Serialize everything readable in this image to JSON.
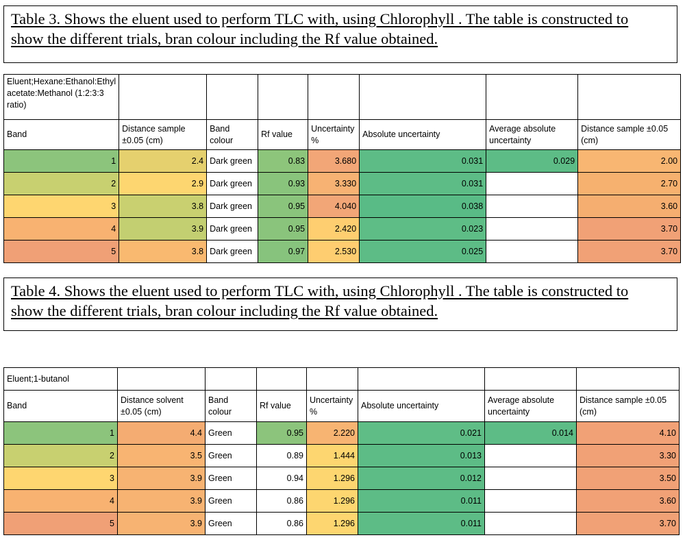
{
  "table3": {
    "caption": {
      "line1": "Table 3. Shows the eluent used to perform TLC with, using Chlorophyll  . The table is constructed to",
      "line2": "show the different trials, bran colour including the Rf value obtained."
    },
    "title": "Eluent;Hexane:Ethanol:Ethyl acetate:Methanol (1:2:3:3 ratio)",
    "headers": [
      "Band",
      "Distance sample ±0.05 (cm)",
      "Band colour",
      "Rf value",
      "Uncertainty %",
      "Absolute uncertainty",
      "Average absolute uncertainty",
      "Distance sample ±0.05 (cm)"
    ],
    "rows": [
      {
        "band": "1",
        "distance": "2.4",
        "colour": "Dark green",
        "rf": "0.83",
        "unc_pct": "3.680",
        "abs_unc": "0.031",
        "avg_abs": "0.029",
        "dist_sample": "2.00"
      },
      {
        "band": "2",
        "distance": "2.9",
        "colour": "Dark green",
        "rf": "0.93",
        "unc_pct": "3.330",
        "abs_unc": "0.031",
        "avg_abs": "",
        "dist_sample": "2.70"
      },
      {
        "band": "3",
        "distance": "3.8",
        "colour": "Dark green",
        "rf": "0.95",
        "unc_pct": "4.040",
        "abs_unc": "0.038",
        "avg_abs": "",
        "dist_sample": "3.60"
      },
      {
        "band": "4",
        "distance": "3.9",
        "colour": "Dark green",
        "rf": "0.95",
        "unc_pct": "2.420",
        "abs_unc": "0.023",
        "avg_abs": "",
        "dist_sample": "3.70"
      },
      {
        "band": "5",
        "distance": "3.8",
        "colour": "Dark green",
        "rf": "0.97",
        "unc_pct": "2.530",
        "abs_unc": "0.025",
        "avg_abs": "",
        "dist_sample": "3.70"
      }
    ],
    "fills": [
      {
        "band": "#8cc47c",
        "distance": "#e5d06e",
        "colour": "#ffffff",
        "rf": "#8dc57b",
        "unc_pct": "#f2a677",
        "abs_unc": "#5dbc86",
        "avg_abs": "#5dbc86",
        "dist_sample": "#f8b672"
      },
      {
        "band": "#c8d070",
        "distance": "#fdd670",
        "colour": "#ffffff",
        "rf": "#89c47c",
        "unc_pct": "#f7b273",
        "abs_unc": "#5dbc86",
        "avg_abs": "#ffffff",
        "dist_sample": "#f6b16f"
      },
      {
        "band": "#fed670",
        "distance": "#c9d070",
        "colour": "#ffffff",
        "rf": "#8ac47c",
        "unc_pct": "#f2a677",
        "abs_unc": "#59bb86",
        "avg_abs": "#ffffff",
        "dist_sample": "#f5ae70"
      },
      {
        "band": "#f8b271",
        "distance": "#c3cf71",
        "colour": "#ffffff",
        "rf": "#8ac47c",
        "unc_pct": "#fece70",
        "abs_unc": "#5ebd86",
        "avg_abs": "#ffffff",
        "dist_sample": "#f1a176"
      },
      {
        "band": "#f0a076",
        "distance": "#f9b970",
        "colour": "#ffffff",
        "rf": "#87c37d",
        "unc_pct": "#fecd70",
        "abs_unc": "#5dbc86",
        "avg_abs": "#ffffff",
        "dist_sample": "#f1a176"
      }
    ]
  },
  "table4": {
    "caption": {
      "line1": "Table 4. Shows the eluent used to perform TLC with, using Chlorophyll  . The table is constructed to",
      "line2": "show the different trials, bran colour including the Rf value obtained."
    },
    "title": "Eluent;1-butanol",
    "headers": [
      "Band",
      "Distance solvent ±0.05 (cm)",
      "Band colour",
      "Rf value",
      "Uncertainty %",
      "Absolute uncertainty",
      "Average absolute uncertainty",
      "Distance sample ±0.05 (cm)"
    ],
    "rows": [
      {
        "band": "1",
        "distance": "4.4",
        "colour": "Green",
        "rf": "0.95",
        "unc_pct": "2.220",
        "abs_unc": "0.021",
        "avg_abs": "0.014",
        "dist_sample": "4.10"
      },
      {
        "band": "2",
        "distance": "3.5",
        "colour": "Green",
        "rf": "0.89",
        "unc_pct": "1.444",
        "abs_unc": "0.013",
        "avg_abs": "",
        "dist_sample": "3.30"
      },
      {
        "band": "3",
        "distance": "3.9",
        "colour": "Green",
        "rf": "0.94",
        "unc_pct": "1.296",
        "abs_unc": "0.012",
        "avg_abs": "",
        "dist_sample": "3.50"
      },
      {
        "band": "4",
        "distance": "3.9",
        "colour": "Green",
        "rf": "0.86",
        "unc_pct": "1.296",
        "abs_unc": "0.011",
        "avg_abs": "",
        "dist_sample": "3.60"
      },
      {
        "band": "5",
        "distance": "3.9",
        "colour": "Green",
        "rf": "0.86",
        "unc_pct": "1.296",
        "abs_unc": "0.011",
        "avg_abs": "",
        "dist_sample": "3.70"
      }
    ],
    "fills": [
      {
        "band": "#8cc47c",
        "distance": "#f4ac72",
        "colour": "#ffffff",
        "rf": "#8cc47c",
        "unc_pct": "#f7b472",
        "abs_unc": "#5fbd86",
        "avg_abs": "#5dbc86",
        "dist_sample": "#f1a176"
      },
      {
        "band": "#c8d070",
        "distance": "#f8b472",
        "colour": "#ffffff",
        "rf": "#ffffff",
        "unc_pct": "#fdd670",
        "abs_unc": "#5dbc86",
        "avg_abs": "#ffffff",
        "dist_sample": "#f1a176"
      },
      {
        "band": "#fed670",
        "distance": "#f7b372",
        "colour": "#ffffff",
        "rf": "#ffffff",
        "unc_pct": "#fdd670",
        "abs_unc": "#5dbc86",
        "avg_abs": "#ffffff",
        "dist_sample": "#f1a176"
      },
      {
        "band": "#f8b271",
        "distance": "#f7b372",
        "colour": "#ffffff",
        "rf": "#ffffff",
        "unc_pct": "#fdd670",
        "abs_unc": "#5dbc86",
        "avg_abs": "#ffffff",
        "dist_sample": "#f1a176"
      },
      {
        "band": "#f0a076",
        "distance": "#f7b372",
        "colour": "#ffffff",
        "rf": "#ffffff",
        "unc_pct": "#fdd670",
        "abs_unc": "#5dbc86",
        "avg_abs": "#ffffff",
        "dist_sample": "#f1a176"
      }
    ]
  }
}
